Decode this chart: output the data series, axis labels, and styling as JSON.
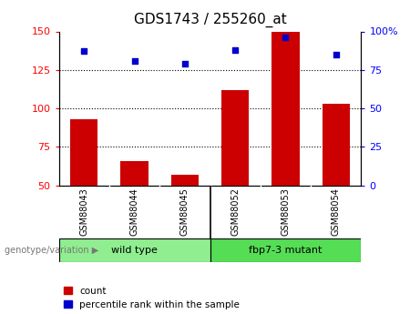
{
  "title": "GDS1743 / 255260_at",
  "samples": [
    "GSM88043",
    "GSM88044",
    "GSM88045",
    "GSM88052",
    "GSM88053",
    "GSM88054"
  ],
  "group_labels": [
    "wild type",
    "fbp7-3 mutant"
  ],
  "bar_bottom": 50,
  "count_values": [
    93,
    66,
    57,
    112,
    150,
    103
  ],
  "percentile_values": [
    87,
    81,
    79,
    88,
    96,
    85
  ],
  "bar_color": "#cc0000",
  "dot_color": "#0000cc",
  "ylim_left": [
    50,
    150
  ],
  "ylim_right": [
    0,
    100
  ],
  "yticks_left": [
    50,
    75,
    100,
    125,
    150
  ],
  "yticks_right": [
    0,
    25,
    50,
    75,
    100
  ],
  "ytick_labels_right": [
    "0",
    "25",
    "50",
    "75",
    "100%"
  ],
  "grid_ticks": [
    75,
    100,
    125
  ],
  "bg_color": "#ffffff",
  "label_area_color": "#c8c8c8",
  "wt_color": "#90ee90",
  "mut_color": "#55dd55",
  "annotation_text": "genotype/variation",
  "legend_count_label": "count",
  "legend_pct_label": "percentile rank within the sample",
  "title_fontsize": 11
}
